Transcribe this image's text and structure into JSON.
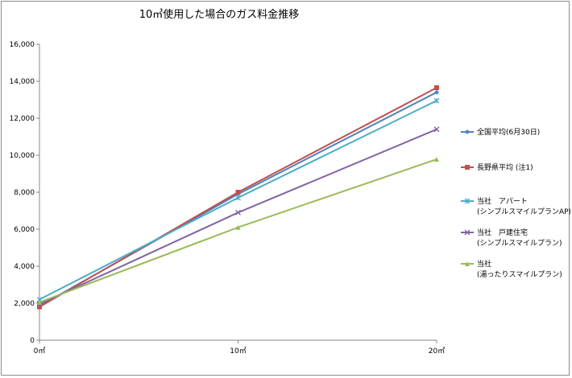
{
  "chart_data": {
    "type": "line",
    "title": "10㎥使用した場合のガス料金推移",
    "xlabel": "",
    "ylabel": "",
    "categories": [
      "0㎥",
      "10㎥",
      "20㎥"
    ],
    "ylim": [
      0,
      16000
    ],
    "yticks": [
      0,
      2000,
      4000,
      6000,
      8000,
      10000,
      12000,
      14000,
      16000
    ],
    "ytick_labels": [
      "0",
      "2,000",
      "4,000",
      "6,000",
      "8,000",
      "10,000",
      "12,000",
      "14,000",
      "16,000"
    ],
    "grid": false,
    "legend_position": "right",
    "series": [
      {
        "name": "全国平均(6月30日)",
        "legend_lines": [
          "全国平均(6月30日)"
        ],
        "values": [
          1850,
          7900,
          13400
        ],
        "color": "#4f81bd",
        "marker": "diamond"
      },
      {
        "name": "長野県平均 (注1)",
        "legend_lines": [
          "長野県平均 (注1)"
        ],
        "values": [
          1800,
          8000,
          13650
        ],
        "color": "#c0504d",
        "marker": "square"
      },
      {
        "name": "当社　アパート (シンプルスマイルプランAP)",
        "legend_lines": [
          "当社　アパート",
          "(シンプルスマイルプランAP)"
        ],
        "values": [
          2200,
          7700,
          12950
        ],
        "color": "#4bacc6",
        "marker": "star"
      },
      {
        "name": "当社　戸建住宅 (シンプルスマイルプラン)",
        "legend_lines": [
          "当社　戸建住宅",
          "(シンプルスマイルプラン)"
        ],
        "values": [
          1950,
          6900,
          11400
        ],
        "color": "#8064a2",
        "marker": "x"
      },
      {
        "name": "当社 (湯ったりスマイルプラン)",
        "legend_lines": [
          "当社",
          "(湯ったりスマイルプラン)"
        ],
        "values": [
          2050,
          6100,
          9780
        ],
        "color": "#9bbb59",
        "marker": "triangle"
      }
    ]
  }
}
